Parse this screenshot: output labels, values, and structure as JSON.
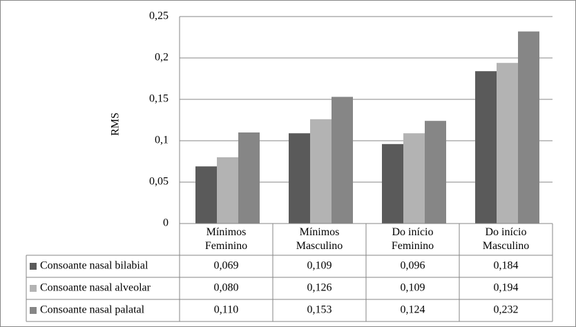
{
  "chart_data": {
    "type": "bar",
    "y_label": "RMS",
    "categories": [
      "Mínimos Feminino",
      "Mínimos Masculino",
      "Do início Feminino",
      "Do início Masculino"
    ],
    "series": [
      {
        "name": "Consoante nasal bilabial",
        "color": "#5a5a5a",
        "values": [
          0.069,
          0.109,
          0.096,
          0.184
        ],
        "value_labels": [
          "0,069",
          "0,109",
          "0,096",
          "0,184"
        ]
      },
      {
        "name": "Consoante nasal alveolar",
        "color": "#b3b3b3",
        "values": [
          0.08,
          0.126,
          0.109,
          0.194
        ],
        "value_labels": [
          "0,080",
          "0,126",
          "0,109",
          "0,194"
        ]
      },
      {
        "name": "Consoante nasal palatal",
        "color": "#868686",
        "values": [
          0.11,
          0.153,
          0.124,
          0.232
        ],
        "value_labels": [
          "0,110",
          "0,153",
          "0,124",
          "0,232"
        ]
      }
    ],
    "ylim": [
      0,
      0.25
    ],
    "yticks": [
      0,
      {
        "value": 0.05,
        "label": "0,05"
      },
      {
        "value": 0.1,
        "label": "0,1"
      },
      {
        "value": 0.15,
        "label": "0,15"
      },
      {
        "value": 0.2,
        "label": "0,2"
      },
      {
        "value": 0.25,
        "label": "0,25"
      }
    ],
    "grid": true
  }
}
